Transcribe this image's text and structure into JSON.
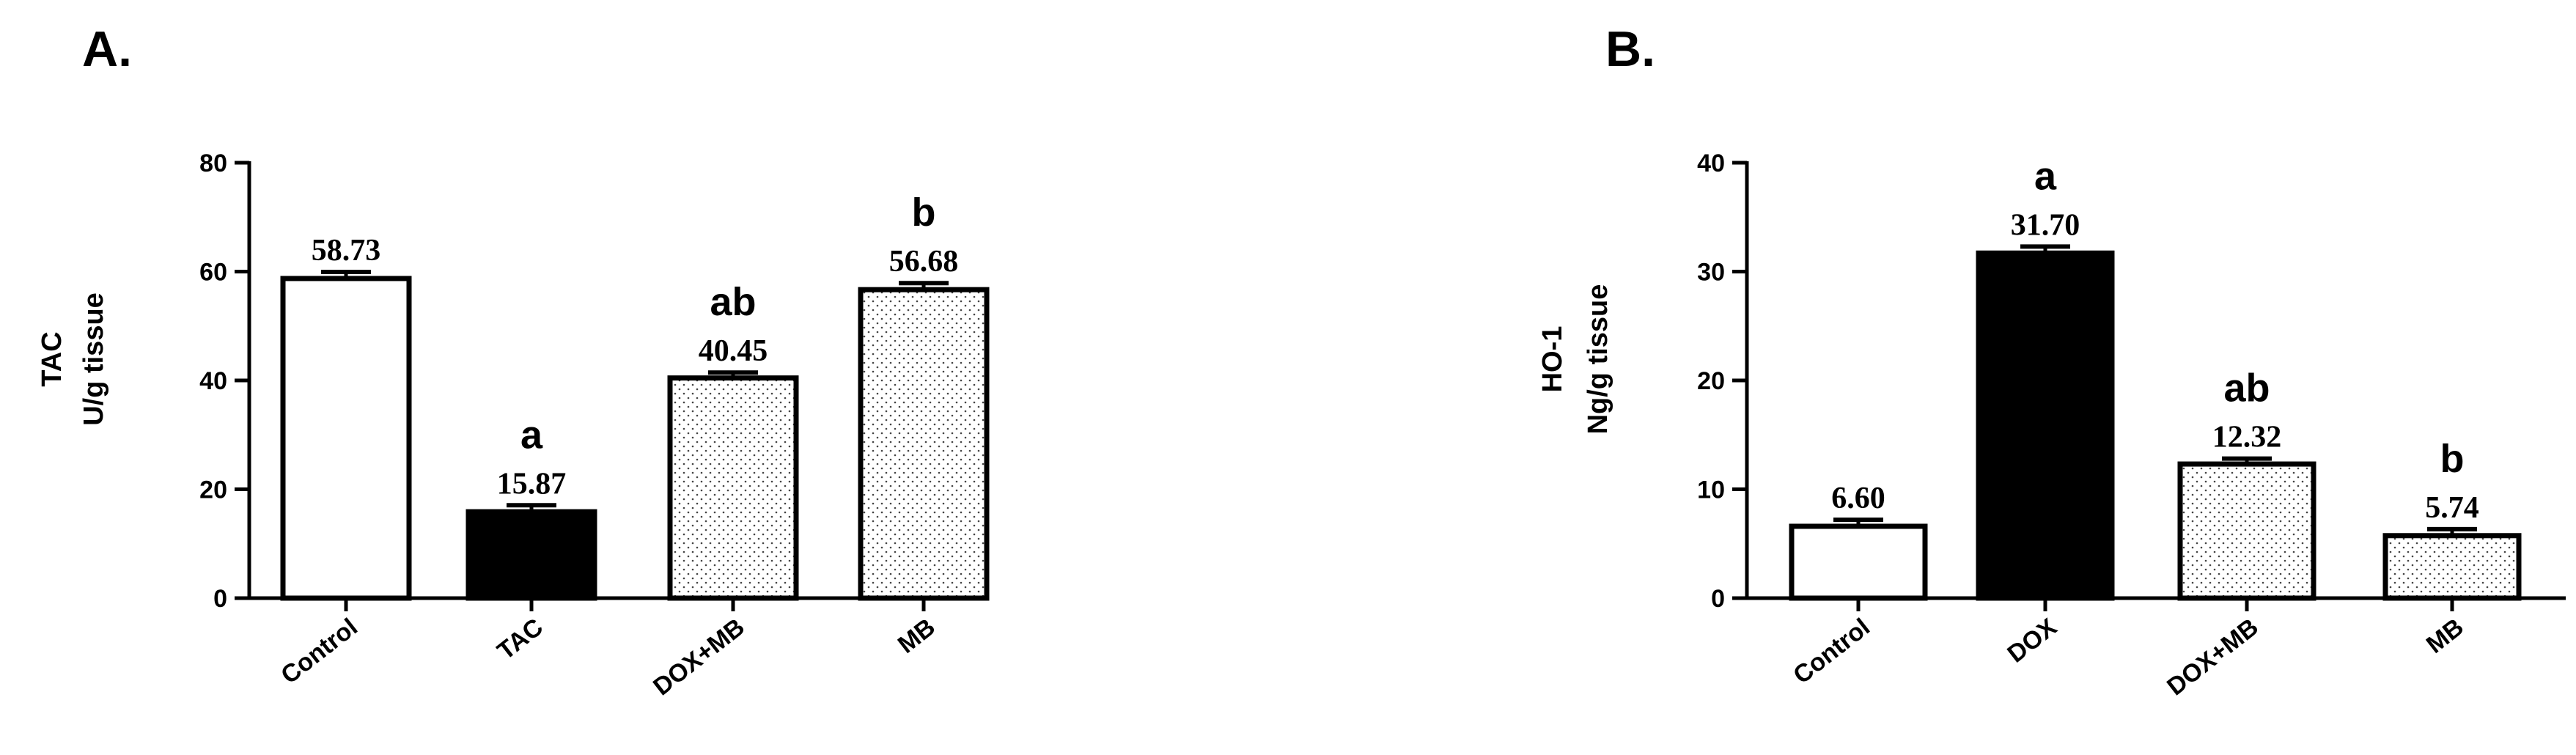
{
  "chart_data": [
    {
      "type": "bar",
      "panel_label": "A.",
      "ylabel_lines": [
        "TAC",
        "U/g  tissue"
      ],
      "ylim": [
        0,
        80
      ],
      "yticks": [
        0,
        20,
        40,
        60,
        80
      ],
      "categories": [
        "Control",
        "TAC",
        "DOX+MB",
        "MB"
      ],
      "values": [
        58.73,
        15.87,
        40.45,
        56.68
      ],
      "value_labels": [
        "58.73",
        "15.87",
        "40.45",
        "56.68"
      ],
      "errors": [
        1.2,
        1.2,
        1.0,
        1.2
      ],
      "significance": [
        "",
        "a",
        "ab",
        "b"
      ],
      "fills": [
        "white",
        "black",
        "dotted",
        "dotted"
      ],
      "grid": false
    },
    {
      "type": "bar",
      "panel_label": "B.",
      "ylabel_lines": [
        "HO-1",
        "Ng/g tissue"
      ],
      "ylim": [
        0,
        40
      ],
      "yticks": [
        0,
        10,
        20,
        30,
        40
      ],
      "categories": [
        "Control",
        "DOX",
        "DOX+MB",
        "MB"
      ],
      "values": [
        6.6,
        31.7,
        12.32,
        5.74
      ],
      "value_labels": [
        "6.60",
        "31.70",
        "12.32",
        "5.74"
      ],
      "errors": [
        0.6,
        0.6,
        0.5,
        0.6
      ],
      "significance": [
        "",
        "a",
        "ab",
        "b"
      ],
      "fills": [
        "white",
        "black",
        "dotted",
        "dotted"
      ],
      "grid": false
    }
  ]
}
